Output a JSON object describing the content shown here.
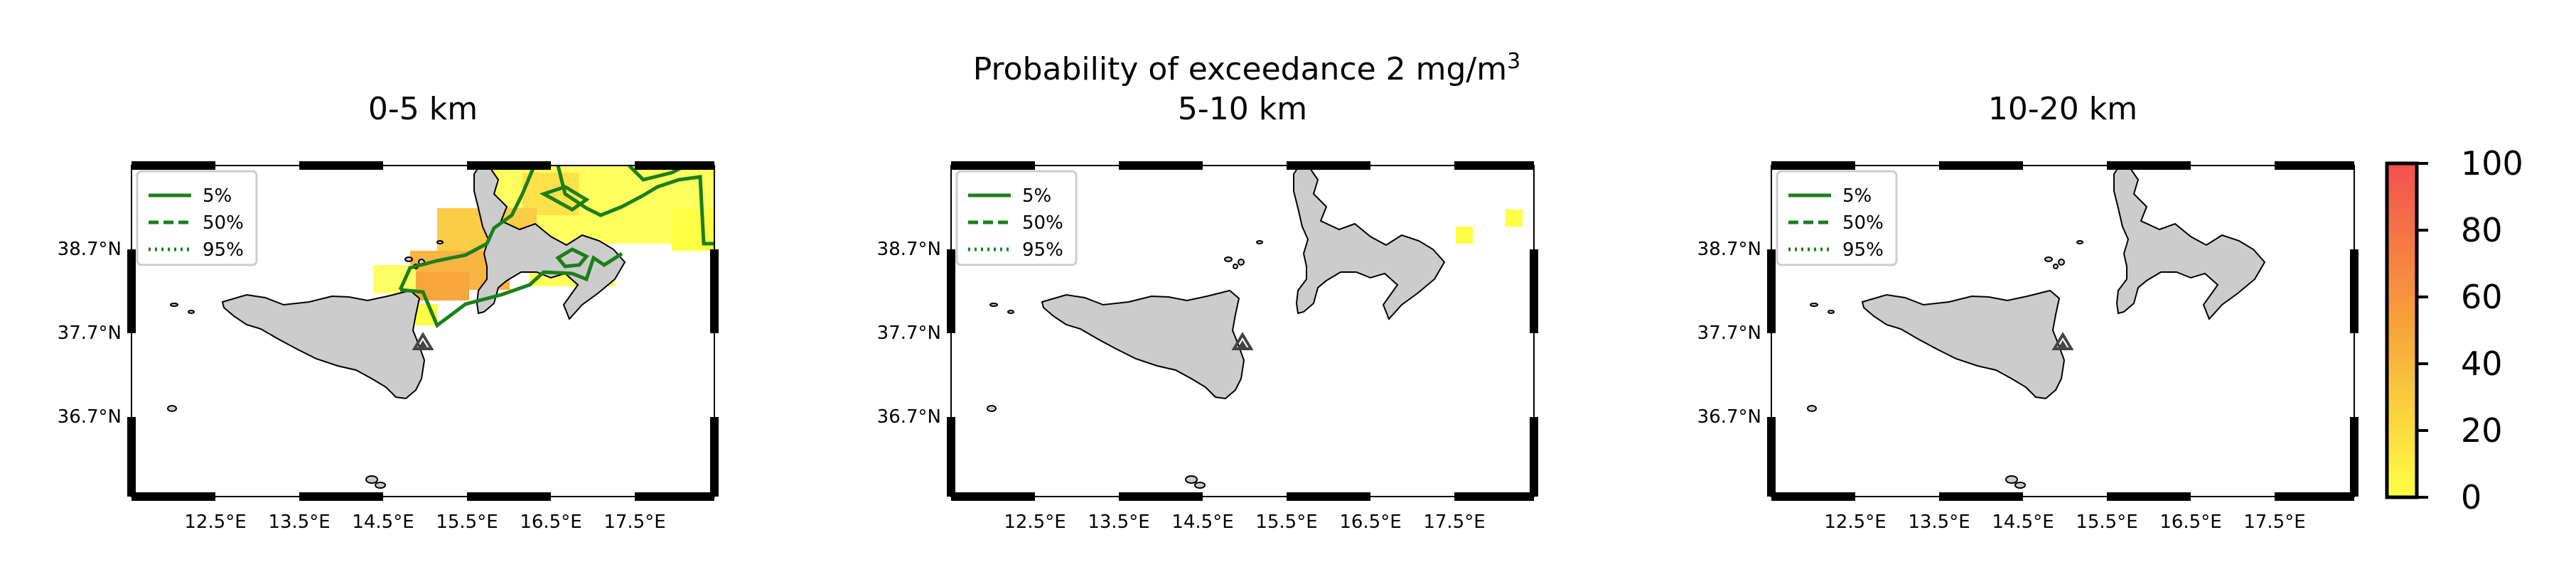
{
  "figure": {
    "suptitle_main": "Probability of exceedance 2 mg/m",
    "suptitle_sup": "3",
    "panels": [
      {
        "title": "0-5 km"
      },
      {
        "title": "5-10 km"
      },
      {
        "title": "10-20 km"
      }
    ],
    "lon_ticks": [
      "12.5°E",
      "13.5°E",
      "14.5°E",
      "15.5°E",
      "16.5°E",
      "17.5°E"
    ],
    "lat_ticks": [
      "38.7°N",
      "37.7°N",
      "36.7°N"
    ],
    "legend": [
      {
        "label": "5%",
        "style": "solid"
      },
      {
        "label": "50%",
        "style": "dashed"
      },
      {
        "label": "95%",
        "style": "dotted"
      }
    ],
    "colorbar": {
      "ticks": [
        "100",
        "80",
        "60",
        "40",
        "20",
        "0"
      ],
      "range": [
        0,
        100
      ],
      "colors": {
        "low": "#ffff44",
        "mid": "#f6a63a",
        "high": "#f45050"
      }
    },
    "contour_color": "#1b7f1b",
    "land_color": "#cccccc",
    "volcano_icon": "triangle-icon"
  }
}
